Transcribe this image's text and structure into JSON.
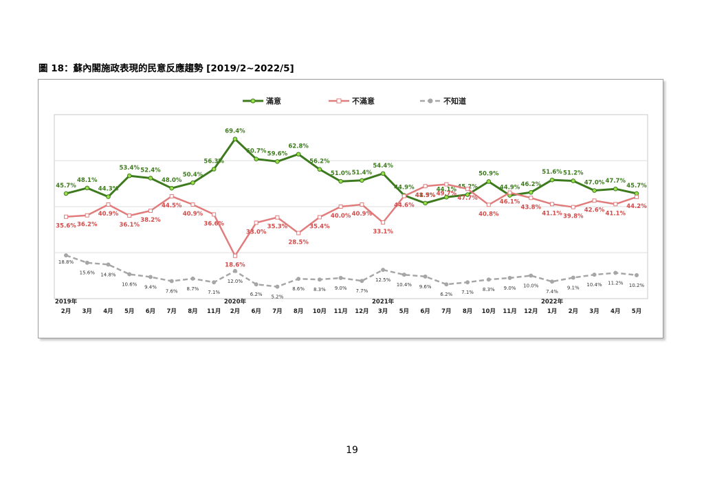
{
  "page": {
    "title": "圖 18：蘇內閣施政表現的民意反應趨勢 [2019/2~2022/5]",
    "page_number": "19"
  },
  "colors": {
    "satisfied": "#3d7a1e",
    "satisfied_marker": "#9be04a",
    "dissatisfied": "#e07c7c",
    "dissatisfied_label": "#d24b4b",
    "unknown": "#a6a6a6"
  },
  "chart_data": {
    "type": "line",
    "categories": [
      "2月",
      "3月",
      "4月",
      "5月",
      "6月",
      "7月",
      "8月",
      "11月",
      "2月",
      "6月",
      "7月",
      "8月",
      "10月",
      "11月",
      "12月",
      "3月",
      "5月",
      "6月",
      "7月",
      "8月",
      "10月",
      "11月",
      "12月",
      "1月",
      "2月",
      "3月",
      "4月",
      "5月"
    ],
    "year_labels": [
      {
        "index": 0,
        "label": "2019年"
      },
      {
        "index": 8,
        "label": "2020年"
      },
      {
        "index": 15,
        "label": "2021年"
      },
      {
        "index": 23,
        "label": "2022年"
      }
    ],
    "series": [
      {
        "name": "滿意",
        "values": [
          45.7,
          48.1,
          44.3,
          53.4,
          52.4,
          48.0,
          50.4,
          56.3,
          69.4,
          60.7,
          59.6,
          62.8,
          56.2,
          51.0,
          51.4,
          54.4,
          44.9,
          41.5,
          44.1,
          45.2,
          50.9,
          44.9,
          46.2,
          51.6,
          51.2,
          47.0,
          47.7,
          45.7
        ]
      },
      {
        "name": "不滿意",
        "values": [
          35.6,
          36.2,
          40.9,
          36.1,
          38.2,
          44.5,
          40.9,
          36.6,
          18.6,
          33.0,
          35.3,
          28.5,
          35.4,
          40.0,
          40.9,
          33.1,
          44.6,
          48.9,
          49.7,
          47.7,
          40.8,
          46.1,
          43.8,
          41.1,
          39.8,
          42.6,
          41.1,
          44.2
        ]
      },
      {
        "name": "不知道",
        "values": [
          18.8,
          15.6,
          14.8,
          10.6,
          9.4,
          7.6,
          8.7,
          7.1,
          12.0,
          6.2,
          5.2,
          8.6,
          8.3,
          9.0,
          7.7,
          12.5,
          10.4,
          9.6,
          6.2,
          7.1,
          8.3,
          9.0,
          10.0,
          7.4,
          9.1,
          10.4,
          11.2,
          10.2
        ]
      }
    ],
    "data_labels": [
      [
        "45.7%",
        "48.1%",
        "44.3%",
        "53.4%",
        "52.4%",
        "48.0%",
        "50.4%",
        "56.3%",
        "69.4%",
        "60.7%",
        "59.6%",
        "62.8%",
        "56.2%",
        "51.0%",
        "51.4%",
        "54.4%",
        "44.9%",
        "41.5%",
        "44.1%",
        "45.2%",
        "50.9%",
        "44.9%",
        "46.2%",
        "51.6%",
        "51.2%",
        "47.0%",
        "47.7%",
        "45.7%"
      ],
      [
        "35.6%",
        "36.2%",
        "40.9%",
        "36.1%",
        "38.2%",
        "44.5%",
        "40.9%",
        "36.6%",
        "18.6%",
        "33.0%",
        "35.3%",
        "28.5%",
        "35.4%",
        "40.0%",
        "40.9%",
        "33.1%",
        "44.6%",
        "48.9%",
        "49.7%",
        "47.7%",
        "40.8%",
        "46.1%",
        "43.8%",
        "41.1%",
        "39.8%",
        "42.6%",
        "41.1%",
        "44.2%"
      ],
      [
        "18.8%",
        "15.6%",
        "14.8%",
        "10.6%",
        "9.4%",
        "7.6%",
        "8.7%",
        "7.1%",
        "12.0%",
        "6.2%",
        "5.2%",
        "8.6%",
        "8.3%",
        "9.0%",
        "7.7%",
        "12.5%",
        "10.4%",
        "9.6%",
        "6.2%",
        "7.1%",
        "8.3%",
        "9.0%",
        "10.0%",
        "7.4%",
        "9.1%",
        "10.4%",
        "11.2%",
        "10.2%"
      ]
    ],
    "ylim": [
      0,
      80
    ],
    "grid": true,
    "legend_position": "top-center",
    "title": "",
    "xlabel": "",
    "ylabel": ""
  }
}
